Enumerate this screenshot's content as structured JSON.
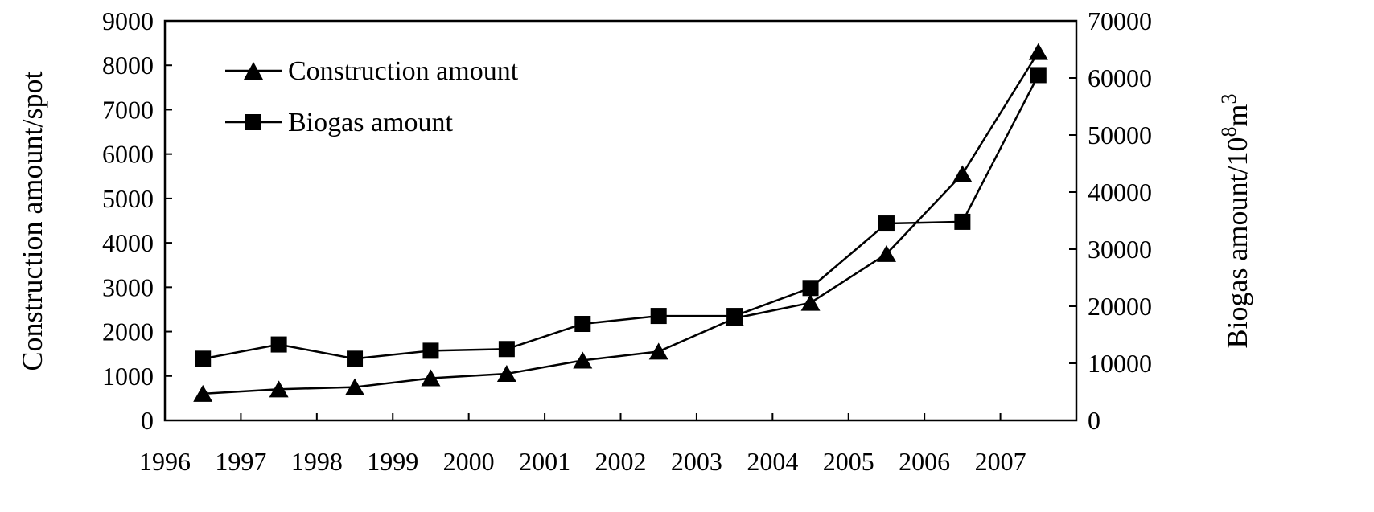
{
  "chart_data": {
    "type": "line",
    "categories": [
      "1996",
      "1997",
      "1998",
      "1999",
      "2000",
      "2001",
      "2002",
      "2003",
      "2004",
      "2005",
      "2006",
      "2007"
    ],
    "series": [
      {
        "name": "Construction amount",
        "axis": "left",
        "marker": "triangle",
        "values": [
          600,
          700,
          750,
          950,
          1050,
          1350,
          1550,
          2300,
          2650,
          3750,
          5550,
          8300
        ]
      },
      {
        "name": "Biogas amount",
        "axis": "right",
        "marker": "square",
        "values": [
          10800,
          13300,
          10800,
          12200,
          12500,
          16900,
          18300,
          18300,
          23200,
          34500,
          34800,
          60500
        ]
      }
    ],
    "ylabel": "Construction amount/spot",
    "ylabel_right": "Biogas amount/10",
    "ylabel_right_sup1": "8",
    "ylabel_right_unit": "m",
    "ylabel_right_sup2": "3",
    "ylim": [
      0,
      9000
    ],
    "ylim_right": [
      0,
      70000
    ],
    "yticks": [
      "0",
      "1000",
      "2000",
      "3000",
      "4000",
      "5000",
      "6000",
      "7000",
      "8000",
      "9000"
    ],
    "yticks_right": [
      "0",
      "10000",
      "20000",
      "30000",
      "40000",
      "50000",
      "60000",
      "70000"
    ],
    "grid": false,
    "legend_position": "top-left",
    "line_color": "#000000"
  }
}
